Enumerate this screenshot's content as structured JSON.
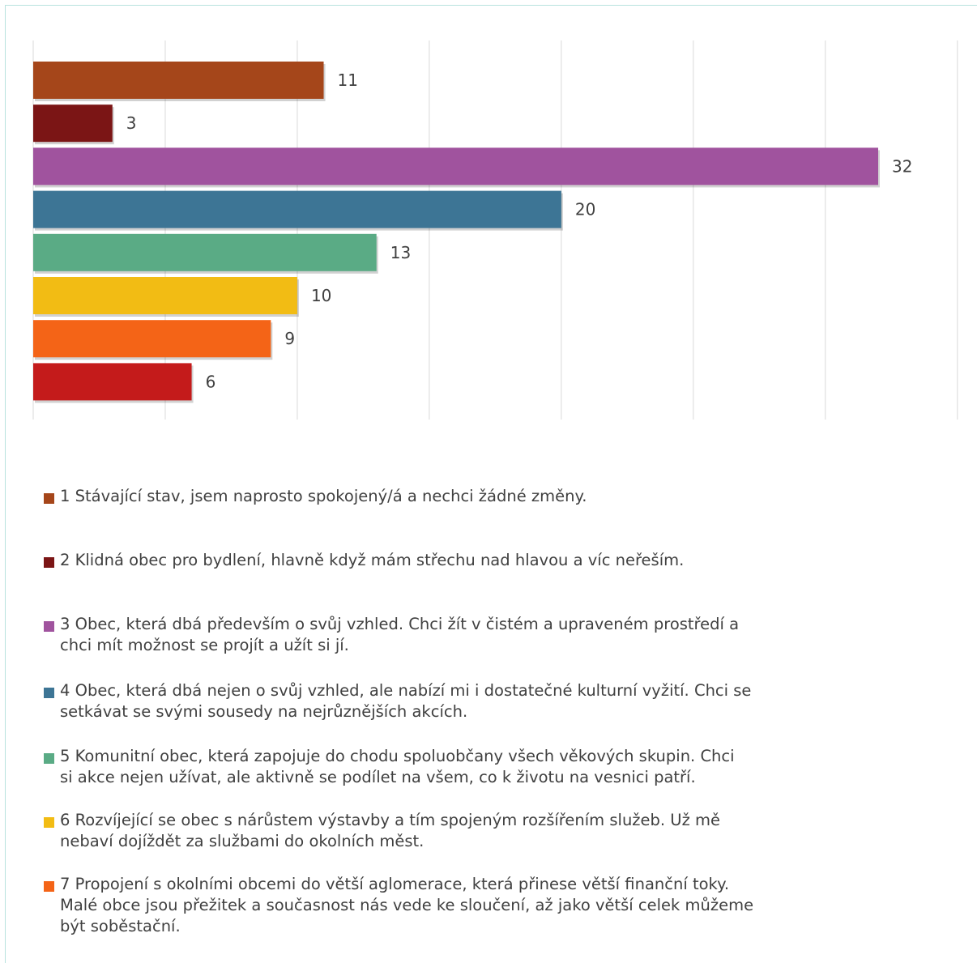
{
  "chart_data": {
    "type": "bar",
    "orientation": "horizontal",
    "categories": [
      "1 Stávající stav, jsem naprosto spokojený/á a nechci žádné změny.",
      "2 Klidná obec pro bydlení, hlavně když mám střechu nad hlavou a víc neřeším.",
      "3 Obec, která dbá především o svůj vzhled. Chci žít v čistém a upraveném prostředí a chci mít možnost se projít a užít si jí.",
      "4 Obec, která dbá nejen o svůj vzhled, ale nabízí mi i dostatečné kulturní vyžití. Chci se setkávat se svými sousedy na nejrůznějších akcích.",
      "5 Komunitní obec, která zapojuje do chodu spoluobčany všech věkových skupin. Chci si akce nejen užívat, ale aktivně se podílet na všem, co k životu na vesnici patří.",
      "6 Rozvíjející se obec s nárůstem výstavby a tím spojeným rozšířením služeb. Už mě nebaví dojíždět za službami do okolních měst.",
      "7 Propojení s okolními obcemi do větší aglomerace, která přinese větší finanční toky. Malé obce jsou přežitek a současnost nás vede ke sloučení, až jako větší celek můžeme být soběstační.",
      ""
    ],
    "values": [
      11,
      3,
      32,
      20,
      13,
      10,
      9,
      6
    ],
    "data_labels": [
      "11",
      "3",
      "32",
      "20",
      "13",
      "10",
      "9",
      "6"
    ],
    "colors": [
      "#a5461a",
      "#7b1515",
      "#a0539e",
      "#3d7595",
      "#5aab85",
      "#f2bc14",
      "#f46417",
      "#c41b1b"
    ],
    "xlim": [
      0,
      35
    ],
    "grid": true,
    "legend_position": "bottom",
    "legend_lines": [
      [
        "1 Stávající stav, jsem naprosto spokojený/á a nechci žádné změny."
      ],
      [
        "2 Klidná obec pro bydlení, hlavně když mám střechu nad hlavou a víc neřeším."
      ],
      [
        "3 Obec, která dbá především o svůj vzhled. Chci žít v čistém a upraveném prostředí a",
        "chci mít možnost se projít a užít si jí."
      ],
      [
        "4 Obec, která dbá nejen o svůj vzhled, ale nabízí mi i dostatečné kulturní vyžití. Chci se",
        "setkávat se svými sousedy na nejrůznějších akcích."
      ],
      [
        "5 Komunitní obec, která zapojuje do chodu spoluobčany všech věkových skupin. Chci",
        "si akce nejen užívat, ale aktivně se podílet na všem, co k životu na vesnici patří."
      ],
      [
        "6 Rozvíjející se obec s nárůstem výstavby a tím spojeným rozšířením služeb. Už mě",
        "nebaví dojíždět za službami do okolních měst."
      ],
      [
        "7 Propojení s okolními obcemi do větší aglomerace, která přinese větší finanční toky.",
        "Malé obce jsou přežitek a současnost nás vede ke sloučení, až jako větší celek můžeme",
        "být soběstační."
      ]
    ]
  }
}
